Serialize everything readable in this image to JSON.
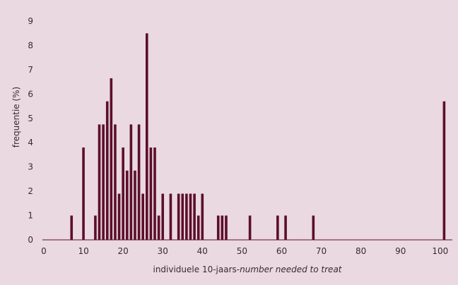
{
  "chart_data": {
    "type": "bar",
    "title": "",
    "xlabel_prefix": "individuele 10-jaars-",
    "xlabel_italic": "number needed to treat",
    "ylabel": "frequentie (%)",
    "xlim": [
      0,
      102
    ],
    "ylim": [
      0,
      9
    ],
    "xticks": [
      0,
      10,
      20,
      30,
      40,
      50,
      60,
      70,
      80,
      90,
      100
    ],
    "yticks": [
      0,
      1,
      2,
      3,
      4,
      5,
      6,
      7,
      8,
      9
    ],
    "grid": false,
    "bar_color": "#5c0f2a",
    "x": [
      7,
      10,
      13,
      14,
      15,
      16,
      17,
      18,
      19,
      20,
      21,
      22,
      23,
      24,
      25,
      26,
      27,
      28,
      29,
      30,
      32,
      34,
      35,
      36,
      37,
      38,
      39,
      40,
      44,
      45,
      46,
      52,
      59,
      61,
      68,
      101
    ],
    "values": [
      1,
      3.8,
      1,
      4.75,
      4.75,
      5.7,
      6.65,
      4.75,
      1.9,
      3.8,
      2.85,
      4.75,
      2.85,
      4.75,
      1.9,
      8.5,
      3.8,
      3.8,
      1,
      1.9,
      1.9,
      1.9,
      1.9,
      1.9,
      1.9,
      1.9,
      1,
      1.9,
      1,
      1,
      1,
      1,
      1,
      1,
      1,
      5.7
    ]
  }
}
